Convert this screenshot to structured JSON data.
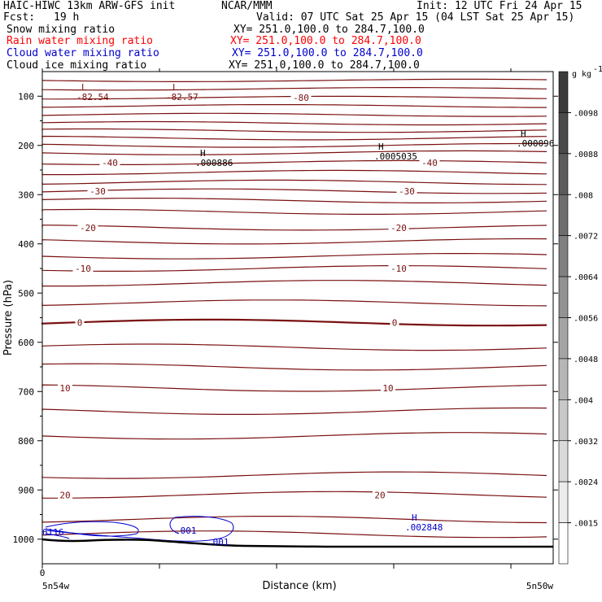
{
  "header": {
    "model": "HAIC-HIWC 13km ARW-GFS init",
    "center": "NCAR/MMM",
    "init": "Init: 12 UTC Fri 24 Apr 15",
    "fcst_label": "Fcst:",
    "fcst_value": "19 h",
    "valid": "Valid: 07 UTC Sat 25 Apr 15 (04 LST Sat 25 Apr 15)",
    "fields": [
      {
        "name": "Snow mixing ratio",
        "xy": "XY= 251.0,100.0 to 284.7,100.0",
        "color": "#000000"
      },
      {
        "name": "Rain water mixing ratio",
        "xy": "XY= 251.0,100.0 to 284.7,100.0",
        "color": "#ff0000"
      },
      {
        "name": "Cloud water mixing ratio",
        "xy": "XY= 251.0,100.0 to 284.7,100.0",
        "color": "#0000cc"
      },
      {
        "name": "Cloud ice mixing ratio",
        "xy": "XY= 251.0,100.0 to 284.7,100.0",
        "color": "#000000"
      }
    ]
  },
  "chart_data": {
    "type": "contour",
    "xlabel": "Distance (km)",
    "ylabel": "Pressure (hPa)",
    "x_start_label": "0",
    "x_tick_labels": [
      "5n54w",
      "5n50w"
    ],
    "y_ticks": [
      100,
      200,
      300,
      400,
      500,
      600,
      700,
      800,
      900,
      1000
    ],
    "ylim": [
      50,
      1050
    ],
    "temperature_contour_labels": [
      {
        "value": "-80",
        "p": 103
      },
      {
        "value": "-40",
        "p": 235
      },
      {
        "value": "-30",
        "p": 293
      },
      {
        "value": "-20",
        "p": 367
      },
      {
        "value": "-10",
        "p": 450
      },
      {
        "value": "0",
        "p": 560
      },
      {
        "value": "10",
        "p": 693
      },
      {
        "value": "20",
        "p": 910
      }
    ],
    "temperature_isotherm_levels_hPa": [
      68,
      85,
      103,
      120,
      138,
      155,
      170,
      185,
      200,
      215,
      235,
      255,
      275,
      293,
      312,
      335,
      367,
      395,
      425,
      450,
      480,
      520,
      560,
      610,
      650,
      693,
      740,
      790,
      870,
      910,
      960,
      990
    ],
    "minmax_labels": [
      {
        "type": "L",
        "value": "-82.54"
      },
      {
        "type": "L",
        "value": "-82.57"
      },
      {
        "type": "H",
        "value": ".000886"
      },
      {
        "type": "H",
        "value": ".0005035"
      },
      {
        "type": "H",
        "value": ".000096"
      },
      {
        "type": "H",
        "value": ".002848"
      }
    ],
    "cloud_water_contour_labels": [
      ".001",
      ".001",
      "6116"
    ],
    "colorbar": {
      "unit": "g kg",
      "unit_exp": "-1",
      "labels": [
        ".0098",
        ".0088",
        ".008",
        ".0072",
        ".0064",
        ".0056",
        ".0048",
        ".004",
        ".0032",
        ".0024",
        ".0015"
      ],
      "colors": [
        "#3a3a3a",
        "#4a4a4a",
        "#5c5c5c",
        "#6e6e6e",
        "#808080",
        "#929292",
        "#a4a4a4",
        "#b6b6b6",
        "#c8c8c8",
        "#dadada",
        "#ececec",
        "#ffffff"
      ]
    },
    "colors": {
      "temperature": "#7a1010",
      "cloud_water": "#0000cc",
      "terrain": "#000000"
    }
  }
}
